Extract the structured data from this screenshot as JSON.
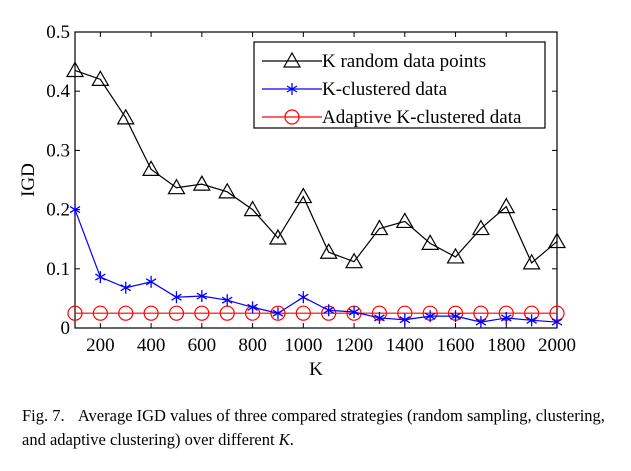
{
  "chart_data": {
    "type": "line",
    "title": "",
    "xlabel": "K",
    "ylabel": "IGD",
    "xlim": [
      100,
      2000
    ],
    "ylim": [
      0,
      0.5
    ],
    "xticks": [
      200,
      400,
      600,
      800,
      1000,
      1200,
      1400,
      1600,
      1800,
      2000
    ],
    "yticks": [
      0,
      0.1,
      0.2,
      0.3,
      0.4,
      0.5
    ],
    "ytick_labels": [
      "0",
      "0.1",
      "0.2",
      "0.3",
      "0.4",
      "0.5"
    ],
    "grid": false,
    "legend_position": "top-right",
    "x": [
      100,
      200,
      300,
      400,
      500,
      600,
      700,
      800,
      900,
      1000,
      1100,
      1200,
      1300,
      1400,
      1500,
      1600,
      1700,
      1800,
      1900,
      2000
    ],
    "series": [
      {
        "name": "K random data points",
        "color": "#000000",
        "marker": "triangle",
        "values": [
          0.435,
          0.42,
          0.355,
          0.268,
          0.237,
          0.243,
          0.23,
          0.2,
          0.152,
          0.222,
          0.128,
          0.112,
          0.168,
          0.18,
          0.143,
          0.12,
          0.168,
          0.205,
          0.11,
          0.146
        ]
      },
      {
        "name": "K-clustered data",
        "color": "#0000ff",
        "marker": "asterisk",
        "values": [
          0.2,
          0.086,
          0.068,
          0.078,
          0.052,
          0.054,
          0.047,
          0.035,
          0.025,
          0.052,
          0.03,
          0.027,
          0.017,
          0.014,
          0.02,
          0.02,
          0.01,
          0.017,
          0.013,
          0.01
        ]
      },
      {
        "name": "Adaptive K-clustered data",
        "color": "#ff0000",
        "marker": "circle",
        "values": [
          0.025,
          0.025,
          0.025,
          0.025,
          0.025,
          0.025,
          0.025,
          0.025,
          0.025,
          0.025,
          0.025,
          0.025,
          0.025,
          0.025,
          0.025,
          0.025,
          0.025,
          0.025,
          0.025,
          0.025
        ]
      }
    ]
  },
  "caption": {
    "label": "Fig. 7.",
    "text": "Average IGD values of three compared strategies (random sampling, clustering, and adaptive clustering) over different",
    "var": "K",
    "end": "."
  }
}
